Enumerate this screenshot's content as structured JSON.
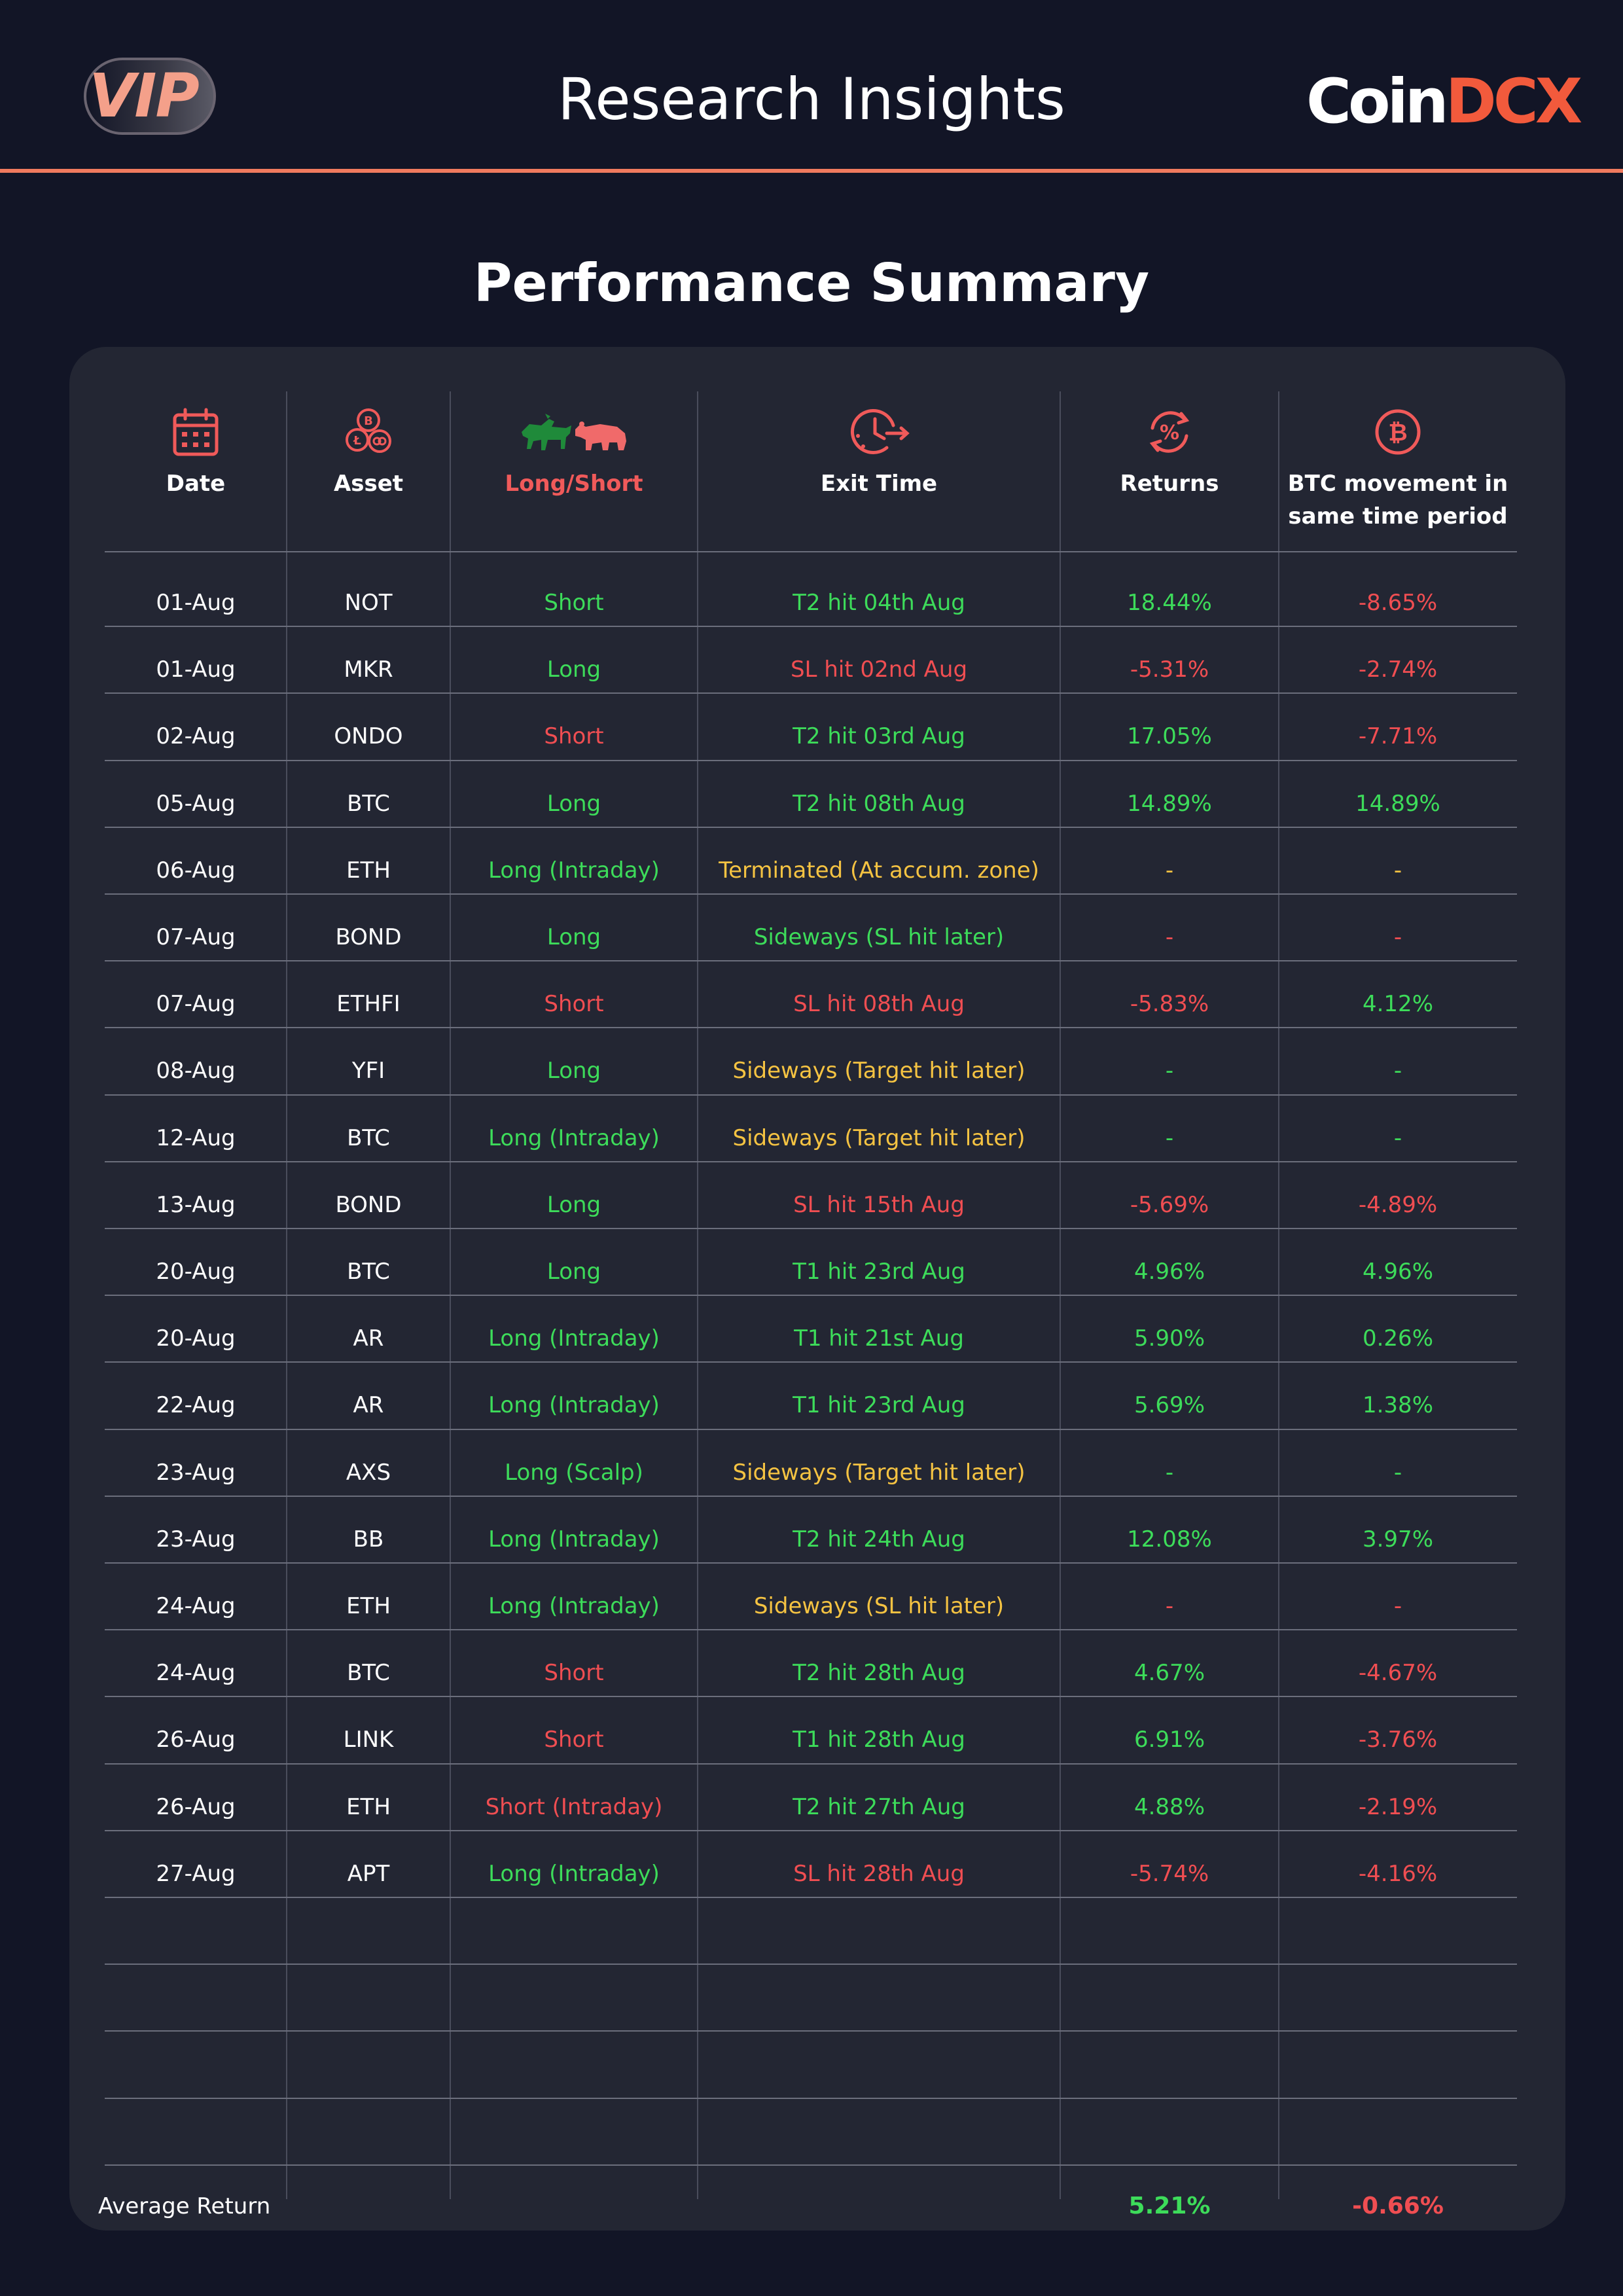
{
  "header": {
    "badge": "VIP",
    "title": "Research Insights",
    "brand_part_a": "Coin",
    "brand_part_b": "DCX"
  },
  "summary_title": "Performance Summary",
  "columns": {
    "date": "Date",
    "asset": "Asset",
    "direction": "Long/Short",
    "exit_time": "Exit Time",
    "returns": "Returns",
    "btc_line1": "BTC movement in",
    "btc_line2": "same time period"
  },
  "icons": {
    "date": "calendar-icon",
    "asset": "crypto-coins-icon",
    "direction": "bull-bear-icon",
    "exit_time": "clock-exit-icon",
    "returns": "percent-cycle-icon",
    "btc": "bitcoin-icon"
  },
  "colors": {
    "accent": "#f05a5a",
    "positive": "#3ddc5a",
    "negative": "#f04e52",
    "neutral": "#f5c342",
    "header_line": "#f07a5e"
  },
  "rows": [
    {
      "date": "01-Aug",
      "asset": "NOT",
      "direction": "Short",
      "direction_tone": "green",
      "exit": "T2 hit 04th Aug",
      "exit_tone": "green",
      "ret": "18.44%",
      "ret_tone": "green",
      "btc": "-8.65%",
      "btc_tone": "red"
    },
    {
      "date": "01-Aug",
      "asset": "MKR",
      "direction": "Long",
      "direction_tone": "green",
      "exit": "SL hit 02nd Aug",
      "exit_tone": "red",
      "ret": "-5.31%",
      "ret_tone": "red",
      "btc": "-2.74%",
      "btc_tone": "red"
    },
    {
      "date": "02-Aug",
      "asset": "ONDO",
      "direction": "Short",
      "direction_tone": "red",
      "exit": "T2 hit 03rd Aug",
      "exit_tone": "green",
      "ret": "17.05%",
      "ret_tone": "green",
      "btc": "-7.71%",
      "btc_tone": "red"
    },
    {
      "date": "05-Aug",
      "asset": "BTC",
      "direction": "Long",
      "direction_tone": "green",
      "exit": "T2 hit 08th Aug",
      "exit_tone": "green",
      "ret": "14.89%",
      "ret_tone": "green",
      "btc": "14.89%",
      "btc_tone": "green"
    },
    {
      "date": "06-Aug",
      "asset": "ETH",
      "direction": "Long (Intraday)",
      "direction_tone": "green",
      "exit": "Terminated (At accum. zone)",
      "exit_tone": "yellow",
      "ret": "-",
      "ret_tone": "yellow",
      "btc": "-",
      "btc_tone": "yellow"
    },
    {
      "date": "07-Aug",
      "asset": "BOND",
      "direction": "Long",
      "direction_tone": "green",
      "exit": "Sideways (SL hit later)",
      "exit_tone": "green",
      "ret": "-",
      "ret_tone": "red",
      "btc": "-",
      "btc_tone": "red"
    },
    {
      "date": "07-Aug",
      "asset": "ETHFI",
      "direction": "Short",
      "direction_tone": "red",
      "exit": "SL hit 08th Aug",
      "exit_tone": "red",
      "ret": "-5.83%",
      "ret_tone": "red",
      "btc": "4.12%",
      "btc_tone": "green"
    },
    {
      "date": "08-Aug",
      "asset": "YFI",
      "direction": "Long",
      "direction_tone": "green",
      "exit": "Sideways (Target hit later)",
      "exit_tone": "yellow",
      "ret": "-",
      "ret_tone": "green",
      "btc": "-",
      "btc_tone": "green"
    },
    {
      "date": "12-Aug",
      "asset": "BTC",
      "direction": "Long (Intraday)",
      "direction_tone": "green",
      "exit": "Sideways (Target hit later)",
      "exit_tone": "yellow",
      "ret": "-",
      "ret_tone": "green",
      "btc": "-",
      "btc_tone": "green"
    },
    {
      "date": "13-Aug",
      "asset": "BOND",
      "direction": "Long",
      "direction_tone": "green",
      "exit": "SL hit 15th Aug",
      "exit_tone": "red",
      "ret": "-5.69%",
      "ret_tone": "red",
      "btc": "-4.89%",
      "btc_tone": "red"
    },
    {
      "date": "20-Aug",
      "asset": "BTC",
      "direction": "Long",
      "direction_tone": "green",
      "exit": "T1 hit 23rd Aug",
      "exit_tone": "green",
      "ret": "4.96%",
      "ret_tone": "green",
      "btc": "4.96%",
      "btc_tone": "green"
    },
    {
      "date": "20-Aug",
      "asset": "AR",
      "direction": "Long (Intraday)",
      "direction_tone": "green",
      "exit": "T1 hit 21st Aug",
      "exit_tone": "green",
      "ret": "5.90%",
      "ret_tone": "green",
      "btc": "0.26%",
      "btc_tone": "green"
    },
    {
      "date": "22-Aug",
      "asset": "AR",
      "direction": "Long (Intraday)",
      "direction_tone": "green",
      "exit": "T1 hit 23rd Aug",
      "exit_tone": "green",
      "ret": "5.69%",
      "ret_tone": "green",
      "btc": "1.38%",
      "btc_tone": "green"
    },
    {
      "date": "23-Aug",
      "asset": "AXS",
      "direction": "Long (Scalp)",
      "direction_tone": "green",
      "exit": "Sideways (Target hit later)",
      "exit_tone": "yellow",
      "ret": "-",
      "ret_tone": "green",
      "btc": "-",
      "btc_tone": "green"
    },
    {
      "date": "23-Aug",
      "asset": "BB",
      "direction": "Long (Intraday)",
      "direction_tone": "green",
      "exit": "T2 hit 24th Aug",
      "exit_tone": "green",
      "ret": "12.08%",
      "ret_tone": "green",
      "btc": "3.97%",
      "btc_tone": "green"
    },
    {
      "date": "24-Aug",
      "asset": "ETH",
      "direction": "Long (Intraday)",
      "direction_tone": "green",
      "exit": "Sideways (SL hit later)",
      "exit_tone": "yellow",
      "ret": "-",
      "ret_tone": "red",
      "btc": "-",
      "btc_tone": "red"
    },
    {
      "date": "24-Aug",
      "asset": "BTC",
      "direction": "Short",
      "direction_tone": "red",
      "exit": "T2 hit 28th Aug",
      "exit_tone": "green",
      "ret": "4.67%",
      "ret_tone": "green",
      "btc": "-4.67%",
      "btc_tone": "red"
    },
    {
      "date": "26-Aug",
      "asset": "LINK",
      "direction": "Short",
      "direction_tone": "red",
      "exit": "T1 hit 28th Aug",
      "exit_tone": "green",
      "ret": "6.91%",
      "ret_tone": "green",
      "btc": "-3.76%",
      "btc_tone": "red"
    },
    {
      "date": "26-Aug",
      "asset": "ETH",
      "direction": "Short (Intraday)",
      "direction_tone": "red",
      "exit": "T2 hit 27th Aug",
      "exit_tone": "green",
      "ret": "4.88%",
      "ret_tone": "green",
      "btc": "-2.19%",
      "btc_tone": "red"
    },
    {
      "date": "27-Aug",
      "asset": "APT",
      "direction": "Long (Intraday)",
      "direction_tone": "green",
      "exit": "SL hit 28th Aug",
      "exit_tone": "red",
      "ret": "-5.74%",
      "ret_tone": "red",
      "btc": "-4.16%",
      "btc_tone": "red"
    }
  ],
  "empty_rows": 4,
  "footer": {
    "label": "Average Return",
    "returns": "5.21%",
    "returns_tone": "green",
    "btc": "-0.66%",
    "btc_tone": "red"
  }
}
